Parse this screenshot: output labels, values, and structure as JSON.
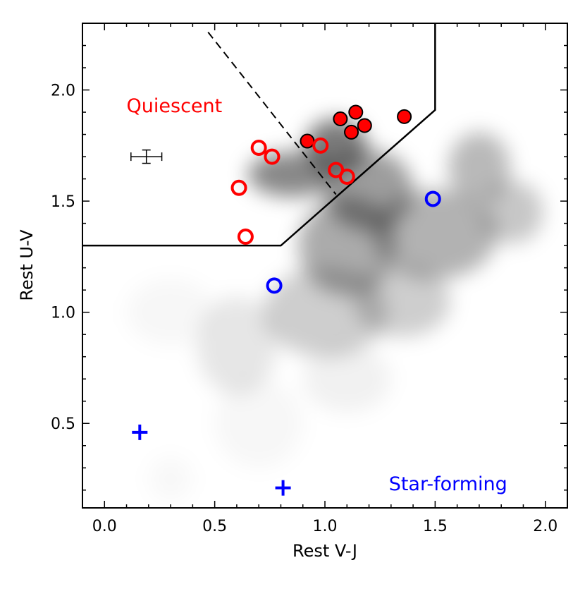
{
  "chart_data": {
    "type": "scatter",
    "xlabel": "Rest V-J",
    "ylabel": "Rest U-V",
    "xlim": [
      -0.1,
      2.1
    ],
    "ylim": [
      0.12,
      2.3
    ],
    "x_ticks": [
      0.0,
      0.5,
      1.0,
      1.5,
      2.0
    ],
    "x_tick_labels": [
      "0.0",
      "0.5",
      "1.0",
      "1.5",
      "2.0"
    ],
    "y_ticks": [
      0.5,
      1.0,
      1.5,
      2.0
    ],
    "y_tick_labels": [
      "0.5",
      "1.0",
      "1.5",
      "2.0"
    ],
    "grid": false,
    "annotations": [
      {
        "text": "Quiescent",
        "x": 0.1,
        "y": 1.9,
        "color": "#ff0000"
      },
      {
        "text": "Star-forming",
        "x": 1.29,
        "y": 0.2,
        "color": "#0000ff"
      }
    ],
    "boundary_line": {
      "style": "solid",
      "x": [
        -0.1,
        0.8,
        1.5,
        1.5
      ],
      "y": [
        1.3,
        1.3,
        1.91,
        2.3
      ]
    },
    "dashed_line": {
      "style": "dashed",
      "x": [
        0.47,
        1.05
      ],
      "y": [
        2.26,
        1.53
      ]
    },
    "error_bar": {
      "x": 0.19,
      "y": 1.7,
      "xerr": 0.07,
      "yerr": 0.03
    },
    "density_background": {
      "color": "#000000",
      "blobs": [
        {
          "x": 1.05,
          "y": 1.75,
          "sx": 0.14,
          "sy": 0.12,
          "a": 0.95
        },
        {
          "x": 0.85,
          "y": 1.62,
          "sx": 0.2,
          "sy": 0.1,
          "a": 0.85
        },
        {
          "x": 1.2,
          "y": 1.55,
          "sx": 0.2,
          "sy": 0.18,
          "a": 0.7
        },
        {
          "x": 1.1,
          "y": 1.3,
          "sx": 0.22,
          "sy": 0.22,
          "a": 0.6
        },
        {
          "x": 1.5,
          "y": 1.35,
          "sx": 0.28,
          "sy": 0.2,
          "a": 0.55
        },
        {
          "x": 1.7,
          "y": 1.65,
          "sx": 0.14,
          "sy": 0.16,
          "a": 0.5
        },
        {
          "x": 1.85,
          "y": 1.45,
          "sx": 0.14,
          "sy": 0.14,
          "a": 0.4
        },
        {
          "x": 1.0,
          "y": 1.0,
          "sx": 0.28,
          "sy": 0.2,
          "a": 0.35
        },
        {
          "x": 1.35,
          "y": 1.05,
          "sx": 0.22,
          "sy": 0.16,
          "a": 0.35
        },
        {
          "x": 0.6,
          "y": 0.85,
          "sx": 0.18,
          "sy": 0.22,
          "a": 0.18
        },
        {
          "x": 0.3,
          "y": 1.0,
          "sx": 0.2,
          "sy": 0.15,
          "a": 0.06
        },
        {
          "x": 0.7,
          "y": 0.5,
          "sx": 0.2,
          "sy": 0.2,
          "a": 0.06
        },
        {
          "x": 1.1,
          "y": 0.7,
          "sx": 0.2,
          "sy": 0.15,
          "a": 0.1
        },
        {
          "x": 0.3,
          "y": 0.25,
          "sx": 0.1,
          "sy": 0.1,
          "a": 0.05
        }
      ]
    },
    "series": [
      {
        "marker": "filled-circle",
        "color": "#ff0000",
        "edgecolor": "#000000",
        "x": [
          0.92,
          1.07,
          1.14,
          1.12,
          1.18,
          1.36
        ],
        "y": [
          1.77,
          1.87,
          1.9,
          1.81,
          1.84,
          1.88
        ]
      },
      {
        "marker": "open-circle",
        "color": "#ff0000",
        "x": [
          0.7,
          0.76,
          0.98,
          1.05,
          1.1,
          0.61,
          0.64
        ],
        "y": [
          1.74,
          1.7,
          1.75,
          1.64,
          1.61,
          1.56,
          1.34
        ]
      },
      {
        "marker": "open-circle",
        "color": "#0000ff",
        "x": [
          1.49,
          0.77
        ],
        "y": [
          1.51,
          1.12
        ]
      },
      {
        "marker": "plus",
        "color": "#0000ff",
        "x": [
          0.16,
          0.81
        ],
        "y": [
          0.46,
          0.21
        ]
      }
    ]
  }
}
